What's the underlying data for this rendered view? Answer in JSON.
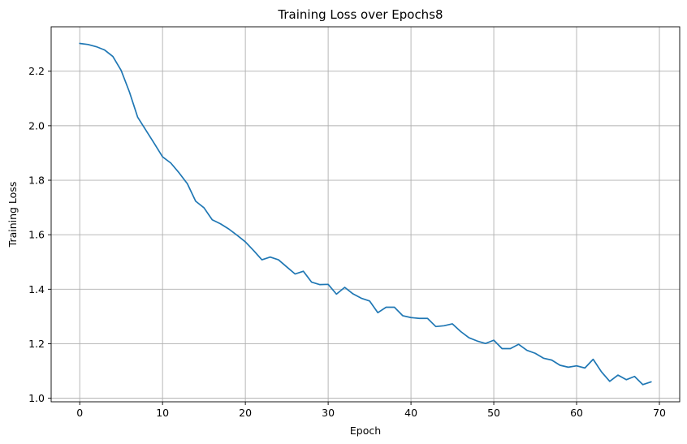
{
  "chart_data": {
    "type": "line",
    "title": "Training Loss over Epochs8",
    "xlabel": "Epoch",
    "ylabel": "Training Loss",
    "xlim": [
      -3.45,
      72.45
    ],
    "ylim": [
      0.987,
      2.363
    ],
    "xticks": [
      0,
      10,
      20,
      30,
      40,
      50,
      60,
      70
    ],
    "yticks": [
      1.0,
      1.2,
      1.4,
      1.6,
      1.8,
      2.0,
      2.2
    ],
    "ytick_labels": [
      "1.0",
      "1.2",
      "1.4",
      "1.6",
      "1.8",
      "2.0",
      "2.2"
    ],
    "grid": true,
    "series_color": "#1f77b4",
    "series": [
      {
        "x": [
          0,
          1,
          2,
          3,
          4,
          5,
          6,
          7,
          8,
          9,
          10,
          11,
          12,
          13,
          14,
          15,
          16,
          17,
          18,
          19,
          20,
          21,
          22,
          23,
          24,
          25,
          26,
          27,
          28,
          29,
          30,
          31,
          32,
          33,
          34,
          35,
          36,
          37,
          38,
          39,
          40,
          41,
          42,
          43,
          44,
          45,
          46,
          47,
          48,
          49,
          50,
          51,
          52,
          53,
          54,
          55,
          56,
          57,
          58,
          59,
          60,
          61,
          62,
          63,
          64,
          65,
          66,
          67,
          68,
          69
        ],
        "values": [
          2.302,
          2.298,
          2.29,
          2.278,
          2.254,
          2.203,
          2.124,
          2.031,
          1.983,
          1.935,
          1.886,
          1.863,
          1.827,
          1.787,
          1.723,
          1.699,
          1.655,
          1.64,
          1.621,
          1.598,
          1.574,
          1.542,
          1.508,
          1.518,
          1.508,
          1.482,
          1.456,
          1.466,
          1.426,
          1.417,
          1.418,
          1.382,
          1.407,
          1.383,
          1.367,
          1.357,
          1.314,
          1.334,
          1.334,
          1.303,
          1.296,
          1.293,
          1.293,
          1.263,
          1.266,
          1.273,
          1.245,
          1.222,
          1.21,
          1.201,
          1.213,
          1.182,
          1.182,
          1.198,
          1.176,
          1.165,
          1.147,
          1.14,
          1.121,
          1.114,
          1.119,
          1.111,
          1.143,
          1.097,
          1.062,
          1.085,
          1.068,
          1.08,
          1.05,
          1.06
        ]
      }
    ]
  }
}
